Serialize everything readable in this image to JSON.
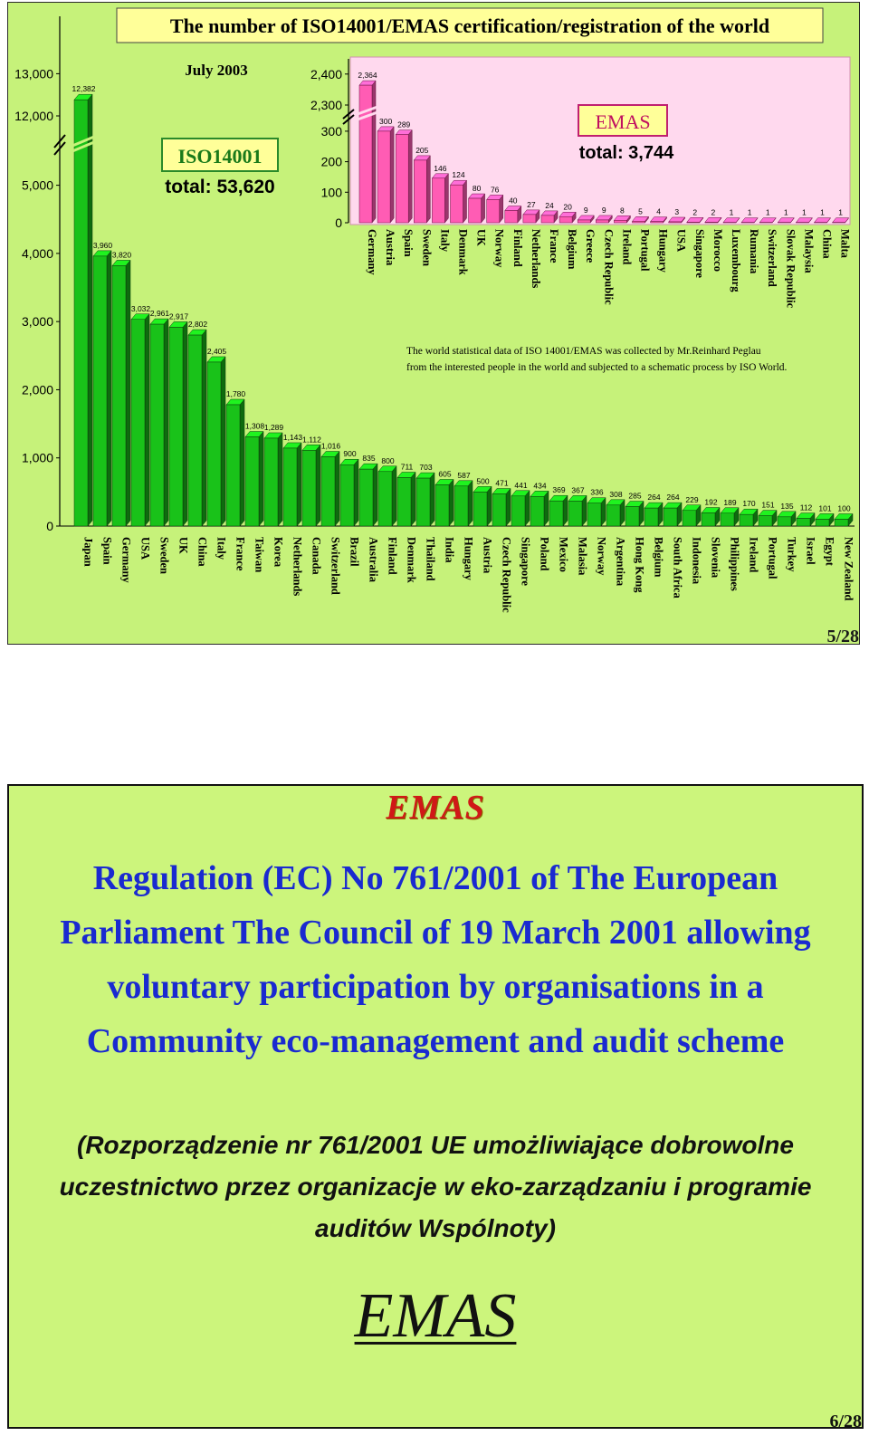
{
  "slide1": {
    "title": "The number of ISO14001/EMAS certification/registration of the world",
    "date_label": "July 2003",
    "iso_box_label": "ISO14001",
    "iso_total": "total: 53,620",
    "emas_box_label": "EMAS",
    "emas_total": "total: 3,744",
    "note_line1": "The world statistical data of ISO 14001/EMAS was collected by Mr.Reinhard Peglau",
    "note_line2": "from the interested people in the world and subjected to a schematic process by ISO World.",
    "page_number": "5/28",
    "colors": {
      "background": "#c6f27a",
      "title_box": "#ffff99",
      "iso_bar": "#19c219",
      "emas_panel": "#ffd9ee",
      "emas_bar": "#ff5cb4",
      "label_box": "#ffff99"
    }
  },
  "chart_data": [
    {
      "type": "bar",
      "series_name": "ISO14001",
      "y_ticks": [
        "0",
        "1,000",
        "2,000",
        "3,000",
        "4,000",
        "5,000",
        "12,000",
        "13,000"
      ],
      "axis_break": "between 5,000 and 12,000",
      "categories": [
        "Japan",
        "Spain",
        "Germany",
        "USA",
        "Sweden",
        "UK",
        "China",
        "Italy",
        "France",
        "Taiwan",
        "Korea",
        "Netherlands",
        "Canada",
        "Switzerland",
        "Brazil",
        "Australia",
        "Finland",
        "Denmark",
        "Thailand",
        "India",
        "Hungary",
        "Austria",
        "Czech Republic",
        "Singapore",
        "Poland",
        "Mexico",
        "Malasia",
        "Norway",
        "Argentina",
        "Hong Kong",
        "Belgium",
        "South Africa",
        "Indonesia",
        "Slovenia",
        "Philippines",
        "Ireland",
        "Portugal",
        "Turkey",
        "Israel",
        "Egypt",
        "New Zealand"
      ],
      "values": [
        12382,
        3960,
        3820,
        3032,
        2961,
        2917,
        2802,
        2405,
        1780,
        1308,
        1289,
        1143,
        1112,
        1016,
        900,
        835,
        800,
        711,
        703,
        605,
        587,
        500,
        471,
        441,
        434,
        369,
        367,
        336,
        308,
        285,
        264,
        264,
        229,
        192,
        189,
        170,
        151,
        135,
        112,
        101,
        100
      ],
      "value_labels": [
        "12,382",
        "3,960",
        "3,820",
        "3,032",
        "2,961",
        "2,917",
        "2,802",
        "2,405",
        "1,780",
        "1,308",
        "1,289",
        "1,143",
        "1,112",
        "1,016",
        "900",
        "835",
        "800",
        "711",
        "703",
        "605",
        "587",
        "500",
        "471",
        "441",
        "434",
        "369",
        "367",
        "336",
        "308",
        "285",
        "264",
        "264",
        "229",
        "192",
        "189",
        "170",
        "151",
        "135",
        "112",
        "101",
        "100"
      ]
    },
    {
      "type": "bar",
      "series_name": "EMAS",
      "y_ticks": [
        "0",
        "100",
        "200",
        "300",
        "2,300",
        "2,400"
      ],
      "axis_break": "between 300 and 2,300",
      "categories": [
        "Germany",
        "Austria",
        "Spain",
        "Sweden",
        "Italy",
        "Denmark",
        "UK",
        "Norway",
        "Finland",
        "Netherlands",
        "France",
        "Belgium",
        "Greece",
        "Czech Republic",
        "Ireland",
        "Portugal",
        "Hungary",
        "USA",
        "Singapore",
        "Morocco",
        "Luxembourg",
        "Rumania",
        "Switzerland",
        "Slovak Republic",
        "Malaysia",
        "China",
        "Malta"
      ],
      "values": [
        2364,
        300,
        289,
        205,
        146,
        124,
        80,
        76,
        40,
        27,
        24,
        20,
        9,
        9,
        8,
        5,
        4,
        3,
        2,
        2,
        1,
        1,
        1,
        1,
        1,
        1,
        1
      ],
      "value_labels": [
        "2,364",
        "300",
        "289",
        "205",
        "146",
        "124",
        "80",
        "76",
        "40",
        "27",
        "24",
        "20",
        "9",
        "9",
        "8",
        "5",
        "4",
        "3",
        "2",
        "2",
        "1",
        "1",
        "1",
        "1",
        "1",
        "1",
        "1"
      ]
    }
  ],
  "slide2": {
    "heading": "EMAS",
    "regulation_text": "Regulation (EC) No 761/2001 of The European Parliament The Council of 19 March 2001 allowing voluntary participation by organisations in a Community eco-management and audit scheme",
    "polish_text": "(Rozporządzenie nr 761/2001 UE umożliwiające dobrowolne uczestnictwo przez organizacje w eko-zarządzaniu i programie auditów Wspólnoty)",
    "footer_title": "EMAS",
    "page_number": "6/28",
    "colors": {
      "background": "#ccf57c",
      "heading": "#d01818",
      "regulation_text": "#1a2ad0"
    }
  }
}
